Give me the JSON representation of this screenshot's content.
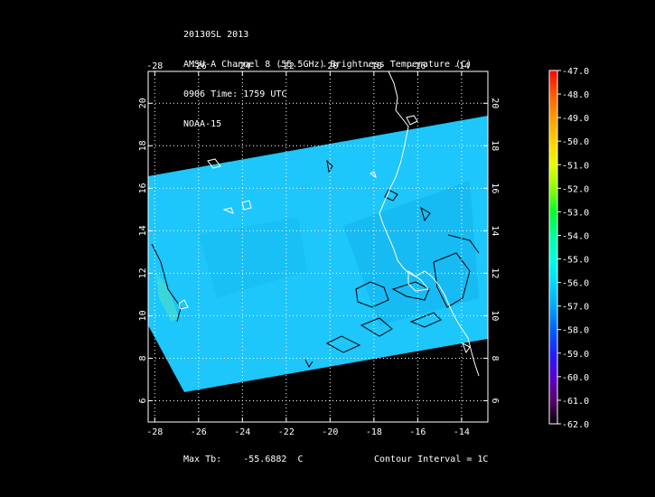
{
  "header": {
    "line1": "20130SL 2013",
    "line2": "AMSU-A Channel 8 (55.5GHz) Brightness Temperature (C)",
    "line3": "0906 Time: 1759 UTC",
    "line4": "NOAA-15"
  },
  "map": {
    "lon_ticks": [
      "-28",
      "-26",
      "-24",
      "-22",
      "-20",
      "-18",
      "-16",
      "-14"
    ],
    "lon_values": [
      -28,
      -26,
      -24,
      -22,
      -20,
      -18,
      -16,
      -14
    ],
    "lat_ticks": [
      "6",
      "8",
      "10",
      "12",
      "14",
      "16",
      "18",
      "20"
    ],
    "lat_values": [
      6,
      8,
      10,
      12,
      14,
      16,
      18,
      20
    ],
    "lon_range": [
      -28.3,
      -12.8
    ],
    "lat_range": [
      5.0,
      21.5
    ],
    "swath_color": "#19c8ff",
    "coast_color": "#ffffff",
    "contour_color": "#000000",
    "grid": true
  },
  "colorbar": {
    "labels": [
      "-47.0",
      "-48.0",
      "-49.0",
      "-50.0",
      "-51.0",
      "-52.0",
      "-53.0",
      "-54.0",
      "-55.0",
      "-56.0",
      "-57.0",
      "-58.0",
      "-59.0",
      "-60.0",
      "-61.0",
      "-62.0"
    ],
    "colors": [
      "#ff0000",
      "#ff5a00",
      "#ff9a00",
      "#ffd000",
      "#e6ff00",
      "#8cff00",
      "#00ff28",
      "#00ffa0",
      "#00ffe0",
      "#00d8ff",
      "#00a8ff",
      "#0060ff",
      "#2020ff",
      "#5a00d0",
      "#5a006e",
      "#000000"
    ]
  },
  "footer": {
    "max_label": "Max Tb:",
    "max_value": "-55.6882",
    "max_unit": "C",
    "contour_text": "Contour Interval = 1C"
  }
}
